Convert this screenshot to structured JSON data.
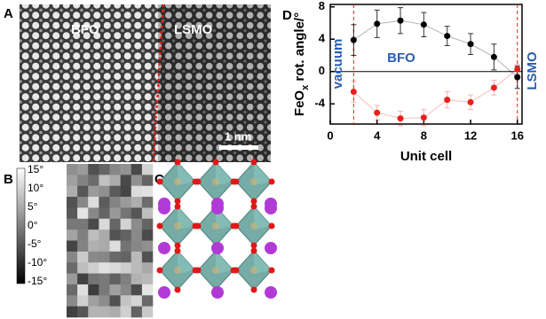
{
  "panels": {
    "a": {
      "label": "A",
      "texts": [
        "BFO",
        "LSMO"
      ],
      "scale_bar": "1 nm"
    },
    "b": {
      "label": "B",
      "colorbar_labels": [
        "15°",
        "10°",
        "5°",
        "0°",
        "-5°",
        "-10°",
        "-15°"
      ]
    },
    "c": {
      "label": "C"
    },
    "d": {
      "label": "D"
    }
  },
  "chart_data": {
    "type": "scatter",
    "x_label": "Unit cell",
    "y_label": [
      "FeO",
      "x",
      " rot. angle/°"
    ],
    "annotations": [
      "vacuum",
      "BFO",
      "LSMO"
    ],
    "x_reference_lines": [
      2,
      16
    ],
    "y_reference_line": 0,
    "x": [
      2,
      4,
      6,
      8,
      10,
      12,
      14,
      16
    ],
    "series": [
      {
        "color": "#000000",
        "values": [
          3.9,
          5.9,
          6.3,
          5.8,
          4.4,
          3.4,
          1.8,
          -0.7
        ],
        "errors": [
          1.9,
          1.7,
          1.6,
          1.5,
          1.2,
          1.3,
          1.6,
          1.4
        ]
      },
      {
        "color": "#e8201a",
        "values": [
          -2.5,
          -5.1,
          -5.8,
          -5.7,
          -3.5,
          -3.8,
          -2.0,
          0.3
        ],
        "errors": [
          1.3,
          0.9,
          0.9,
          1.0,
          1.0,
          0.9,
          0.9,
          0.6
        ]
      }
    ],
    "xlim": [
      0,
      16.4
    ],
    "ylim": [
      -6.5,
      8.3
    ],
    "xticks": [
      0,
      4,
      8,
      12,
      16
    ],
    "yticks": [
      8,
      4,
      0,
      -4
    ]
  }
}
